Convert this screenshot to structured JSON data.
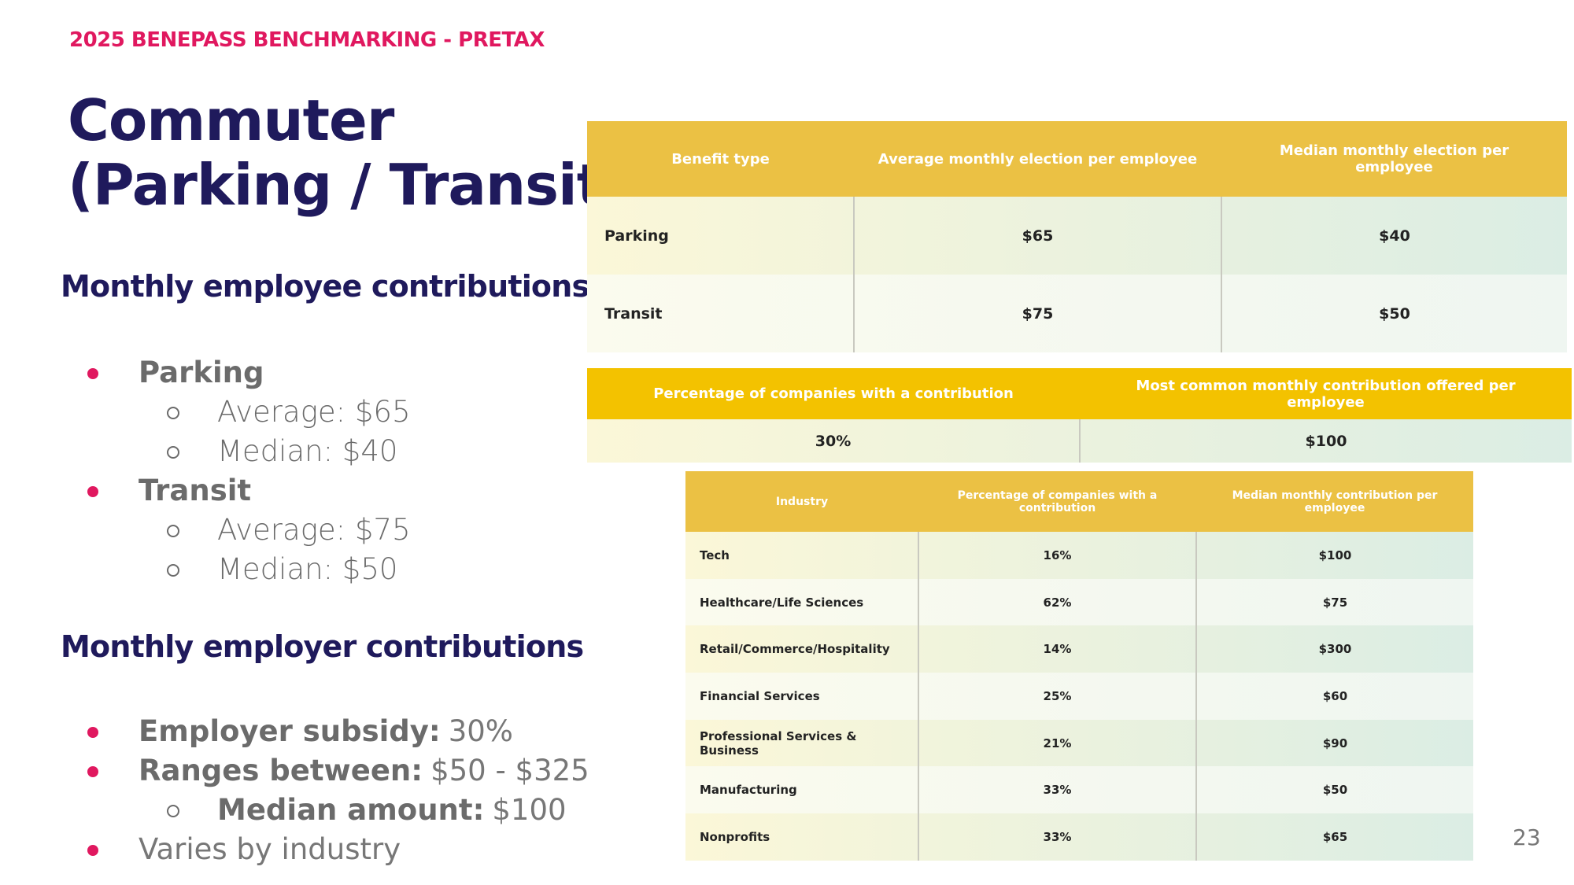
{
  "header": {
    "eyebrow": "2025 BENEPASS BENCHMARKING - PRETAX",
    "title_lines": [
      "Commuter",
      "(Parking / Transit)"
    ]
  },
  "employee": {
    "heading": "Monthly employee contributions",
    "items": [
      {
        "text": "Parking",
        "sub": [
          {
            "text": "Average: $65"
          },
          {
            "text": "Median: $40"
          }
        ]
      },
      {
        "text": "Transit",
        "sub": [
          {
            "text": "Average: $75"
          },
          {
            "text": "Median: $50"
          }
        ]
      }
    ]
  },
  "employer": {
    "heading": "Monthly employer contributions",
    "items": [
      {
        "bold": "Employer subsidy:",
        "text": "30%"
      },
      {
        "bold": "Ranges between:",
        "text": "$50 - $325",
        "sub": [
          {
            "bold": "Median amount:",
            "text": "$100"
          }
        ]
      },
      {
        "text": "Varies by industry"
      }
    ]
  },
  "table1": {
    "headers": [
      "Benefit type",
      "Average monthly election per employee",
      "Median monthly election per employee"
    ],
    "rows": [
      [
        "Parking",
        "$65",
        "$40"
      ],
      [
        "Transit",
        "$75",
        "$50"
      ]
    ]
  },
  "table2": {
    "headers": [
      "Percentage of companies with a contribution",
      "Most common monthly contribution offered per employee"
    ],
    "rows": [
      [
        "30%",
        "$100"
      ]
    ]
  },
  "table3": {
    "headers": [
      "Industry",
      "Percentage of companies with a contribution",
      "Median monthly contribution per employee"
    ],
    "rows": [
      [
        "Tech",
        "16%",
        "$100"
      ],
      [
        "Healthcare/Life Sciences",
        "62%",
        "$75"
      ],
      [
        "Retail/Commerce/Hospitality",
        "14%",
        "$300"
      ],
      [
        "Financial Services",
        "25%",
        "$60"
      ],
      [
        "Professional Services & Business",
        "21%",
        "$90"
      ],
      [
        "Manufacturing",
        "33%",
        "$50"
      ],
      [
        "Nonprofits",
        "33%",
        "$65"
      ]
    ]
  },
  "page_number": "23"
}
